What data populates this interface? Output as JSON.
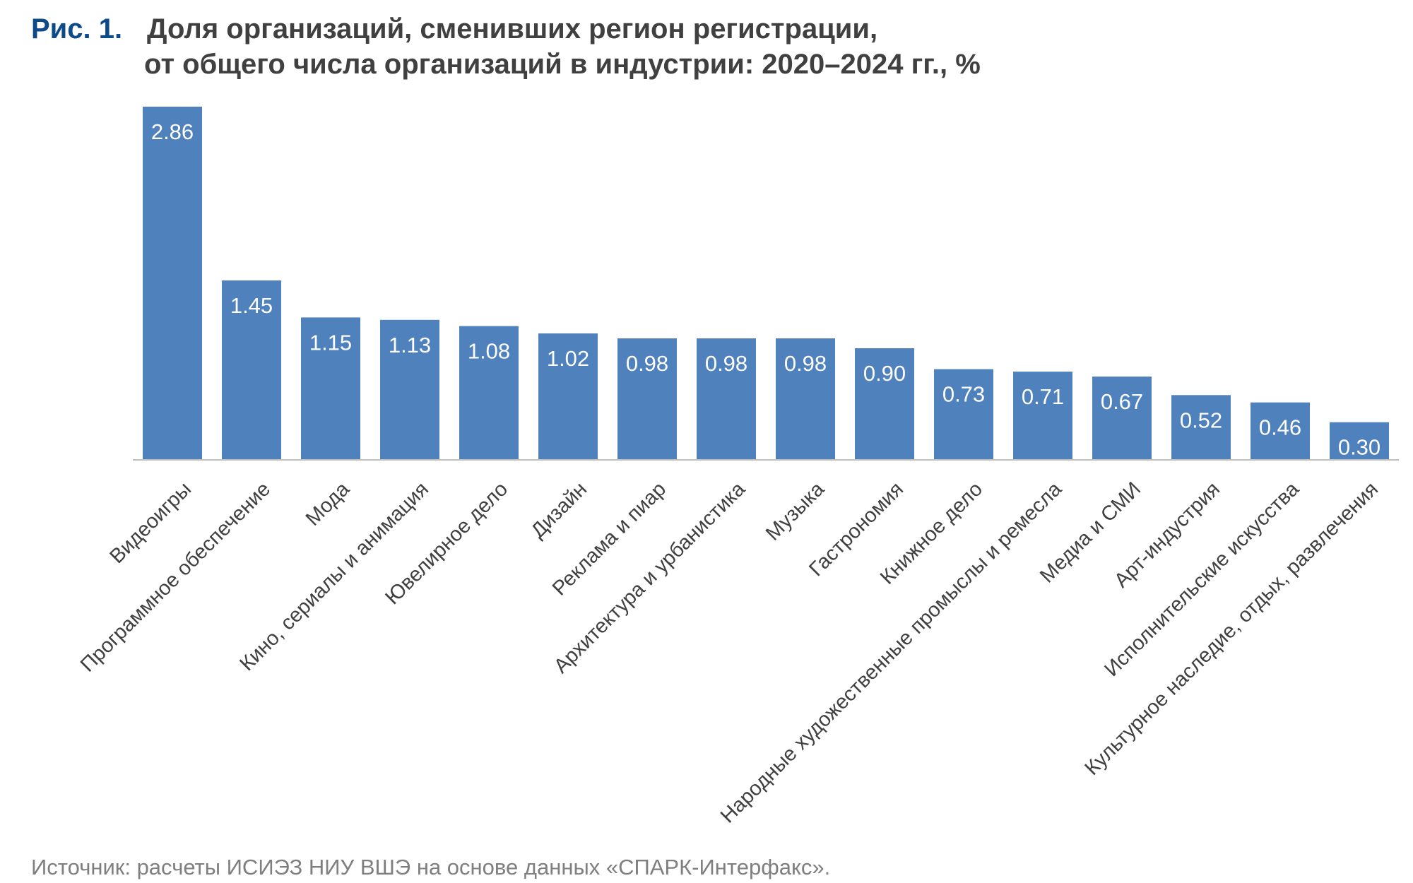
{
  "figure": {
    "label": "Рис. 1.",
    "title_line1": "Доля организаций, сменивших регион регистрации,",
    "title_line2": "от общего числа организаций в индустрии: 2020–2024 гг., %"
  },
  "source": "Источник: расчеты ИСИЭЗ НИУ ВШЭ на основе данных «СПАРК-Интерфакс».",
  "colors": {
    "bar": "#4f81bd",
    "axis": "#bfbfbf",
    "value_label": "#ffffff",
    "category_label": "#404040"
  },
  "chart_data": {
    "type": "bar",
    "title": "Доля организаций, сменивших регион регистрации, от общего числа организаций в индустрии: 2020–2024 гг., %",
    "xlabel": "",
    "ylabel": "",
    "grid": false,
    "legend": "none",
    "ylim": [
      0,
      2.86
    ],
    "categories": [
      "Видеоигры",
      "Программное обеспечение",
      "Мода",
      "Кино, сериалы и анимация",
      "Ювелирное дело",
      "Дизайн",
      "Реклама и пиар",
      "Архитектура и урбанистика",
      "Музыка",
      "Гастрономия",
      "Книжное дело",
      "Народные художественные промыслы и ремесла",
      "Медиа и СМИ",
      "Арт-индустрия",
      "Исполнительские искусства",
      "Культурное наследие, отдых, развлечения"
    ],
    "values": [
      2.86,
      1.45,
      1.15,
      1.13,
      1.08,
      1.02,
      0.98,
      0.98,
      0.98,
      0.9,
      0.73,
      0.71,
      0.67,
      0.52,
      0.46,
      0.3
    ],
    "labels": [
      "2.86",
      "1.45",
      "1.15",
      "1.13",
      "1.08",
      "1.02",
      "0.98",
      "0.98",
      "0.98",
      "0.90",
      "0.73",
      "0.71",
      "0.67",
      "0.52",
      "0.46",
      "0.30"
    ]
  }
}
